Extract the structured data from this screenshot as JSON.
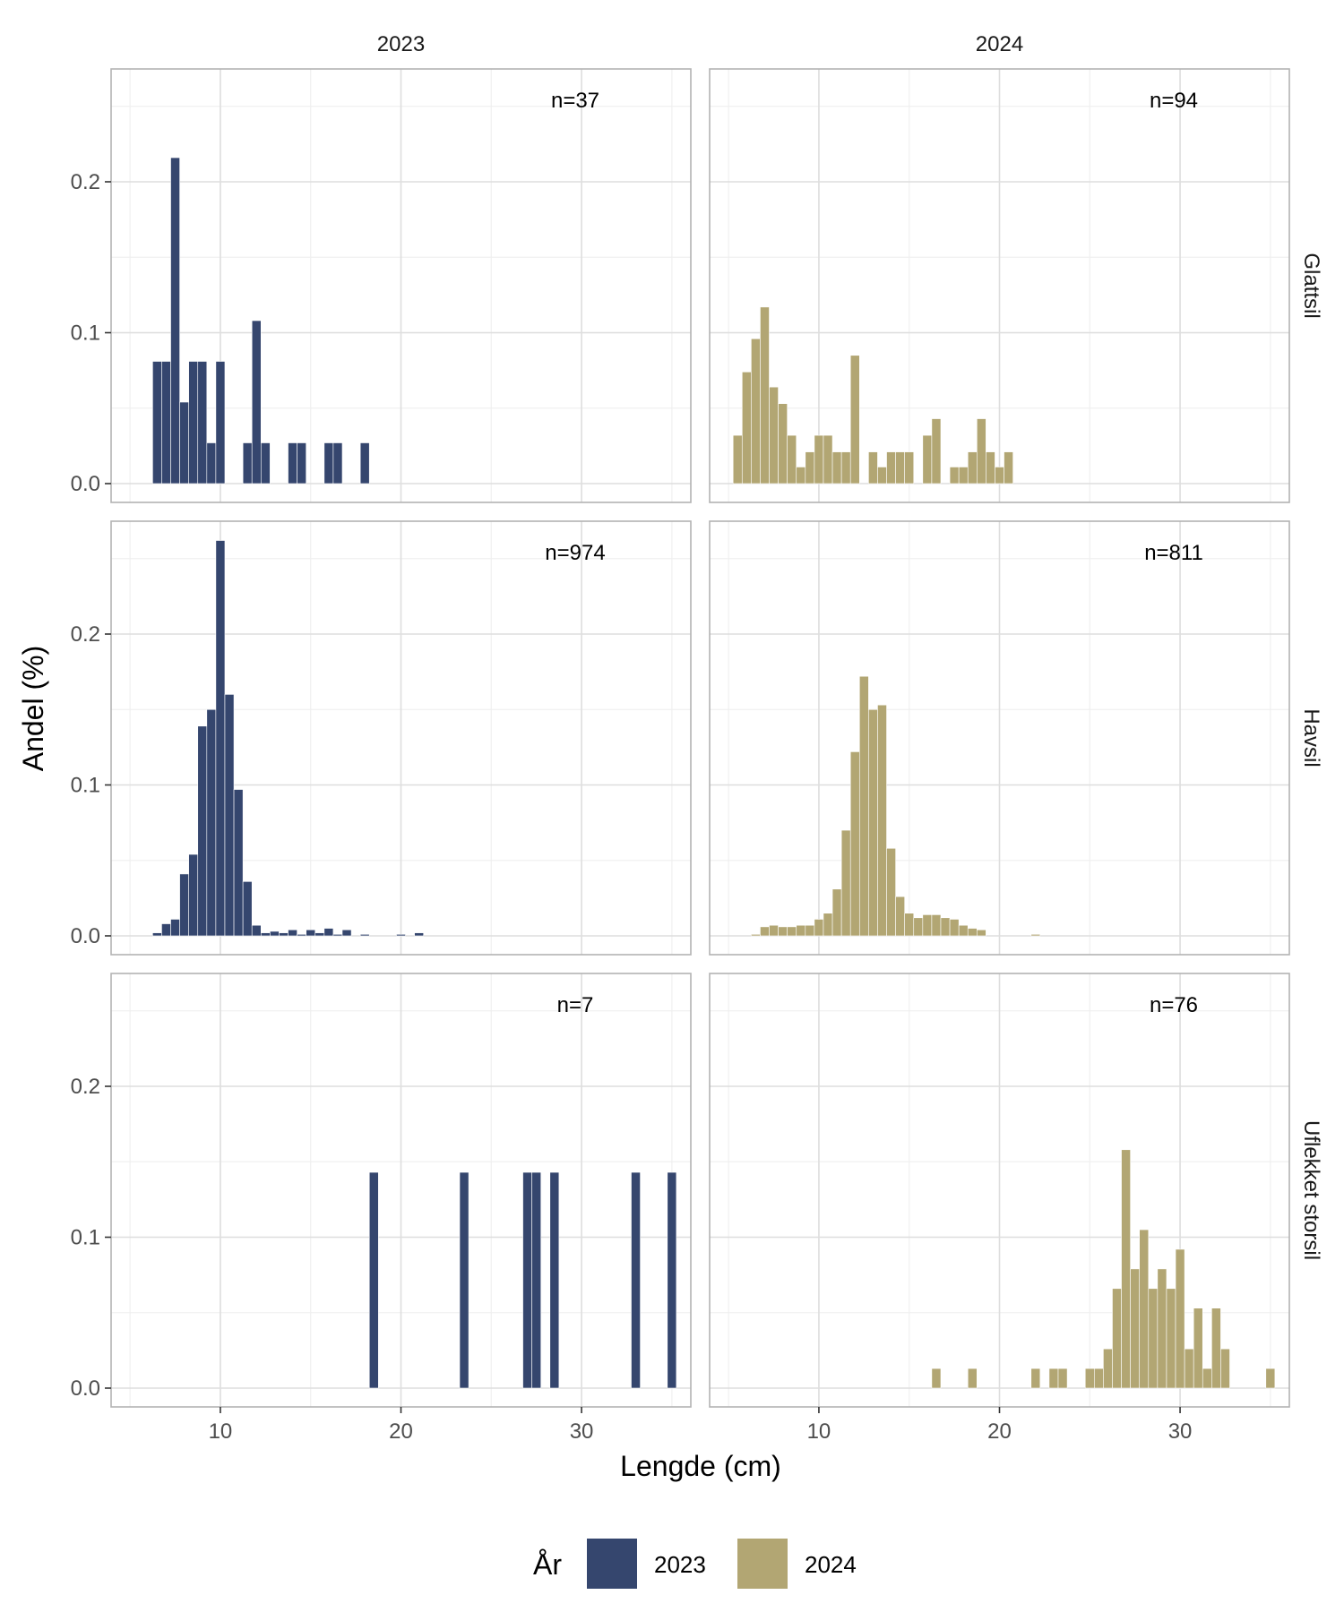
{
  "chart_data": {
    "type": "bar",
    "facet_columns": [
      "2023",
      "2024"
    ],
    "facet_rows": [
      "Glattsil",
      "Havsil",
      "Uflekket storsil"
    ],
    "xlabel": "Lengde (cm)",
    "ylabel": "Andel (%)",
    "xlim": [
      4,
      36
    ],
    "ylim": [
      0,
      0.27
    ],
    "x_ticks": [
      10,
      20,
      30
    ],
    "y_ticks": [
      0.0,
      0.1,
      0.2
    ],
    "y_tick_labels": [
      "0.0",
      "0.1",
      "0.2"
    ],
    "grid": true,
    "bar_width": 0.5,
    "legend": {
      "title": "År",
      "position": "bottom",
      "items": [
        {
          "label": "2023",
          "color": "#35466e"
        },
        {
          "label": "2024",
          "color": "#b2a673"
        }
      ]
    },
    "panels": [
      {
        "row": "Glattsil",
        "column": "2023",
        "n_label": "n=37",
        "color": "#35466e",
        "x": [
          6.5,
          7.0,
          7.5,
          8.0,
          8.5,
          9.0,
          9.5,
          10.0,
          11.5,
          12.0,
          12.5,
          14.0,
          14.5,
          16.0,
          16.5,
          18.0
        ],
        "values": [
          0.081,
          0.081,
          0.216,
          0.054,
          0.081,
          0.081,
          0.027,
          0.081,
          0.027,
          0.108,
          0.027,
          0.027,
          0.027,
          0.027,
          0.027,
          0.027
        ]
      },
      {
        "row": "Glattsil",
        "column": "2024",
        "n_label": "n=94",
        "color": "#b2a673",
        "x": [
          5.5,
          6.0,
          6.5,
          7.0,
          7.5,
          8.0,
          8.5,
          9.0,
          9.5,
          10.0,
          10.5,
          11.0,
          11.5,
          12.0,
          13.0,
          13.5,
          14.0,
          14.5,
          15.0,
          16.0,
          16.5,
          17.5,
          18.0,
          18.5,
          19.0,
          19.5,
          20.0,
          20.5
        ],
        "values": [
          0.032,
          0.074,
          0.096,
          0.117,
          0.064,
          0.053,
          0.032,
          0.011,
          0.021,
          0.032,
          0.032,
          0.021,
          0.021,
          0.085,
          0.021,
          0.011,
          0.021,
          0.021,
          0.021,
          0.032,
          0.043,
          0.011,
          0.011,
          0.021,
          0.043,
          0.021,
          0.011,
          0.021
        ]
      },
      {
        "row": "Havsil",
        "column": "2023",
        "n_label": "n=974",
        "color": "#35466e",
        "x": [
          6.5,
          7.0,
          7.5,
          8.0,
          8.5,
          9.0,
          9.5,
          10.0,
          10.5,
          11.0,
          11.5,
          12.0,
          12.5,
          13.0,
          13.5,
          14.0,
          14.5,
          15.0,
          15.5,
          16.0,
          16.5,
          17.0,
          18.0,
          20.0,
          21.0
        ],
        "values": [
          0.002,
          0.008,
          0.011,
          0.041,
          0.054,
          0.139,
          0.15,
          0.262,
          0.16,
          0.097,
          0.036,
          0.007,
          0.002,
          0.003,
          0.002,
          0.004,
          0.001,
          0.004,
          0.002,
          0.005,
          0.001,
          0.004,
          0.001,
          0.001,
          0.002
        ]
      },
      {
        "row": "Havsil",
        "column": "2024",
        "n_label": "n=811",
        "color": "#b2a673",
        "x": [
          6.5,
          7.0,
          7.5,
          8.0,
          8.5,
          9.0,
          9.5,
          10.0,
          10.5,
          11.0,
          11.5,
          12.0,
          12.5,
          13.0,
          13.5,
          14.0,
          14.5,
          15.0,
          15.5,
          16.0,
          16.5,
          17.0,
          17.5,
          18.0,
          18.5,
          19.0,
          22.0
        ],
        "values": [
          0.001,
          0.006,
          0.007,
          0.006,
          0.006,
          0.007,
          0.007,
          0.011,
          0.015,
          0.031,
          0.07,
          0.122,
          0.172,
          0.15,
          0.153,
          0.058,
          0.026,
          0.015,
          0.012,
          0.014,
          0.014,
          0.012,
          0.011,
          0.007,
          0.005,
          0.004,
          0.001
        ]
      },
      {
        "row": "Uflekket storsil",
        "column": "2023",
        "n_label": "n=7",
        "color": "#35466e",
        "x": [
          18.5,
          23.5,
          27.0,
          27.5,
          28.5,
          33.0,
          35.0
        ],
        "values": [
          0.143,
          0.143,
          0.143,
          0.143,
          0.143,
          0.143,
          0.143
        ]
      },
      {
        "row": "Uflekket storsil",
        "column": "2024",
        "n_label": "n=76",
        "color": "#b2a673",
        "x": [
          16.5,
          18.5,
          22.0,
          23.0,
          23.5,
          25.0,
          25.5,
          26.0,
          26.5,
          27.0,
          27.5,
          28.0,
          28.5,
          29.0,
          29.5,
          30.0,
          30.5,
          31.0,
          31.5,
          32.0,
          32.5,
          35.0
        ],
        "values": [
          0.013,
          0.013,
          0.013,
          0.013,
          0.013,
          0.013,
          0.013,
          0.026,
          0.066,
          0.158,
          0.079,
          0.105,
          0.066,
          0.079,
          0.066,
          0.092,
          0.026,
          0.053,
          0.013,
          0.053,
          0.026,
          0.013
        ]
      }
    ]
  }
}
